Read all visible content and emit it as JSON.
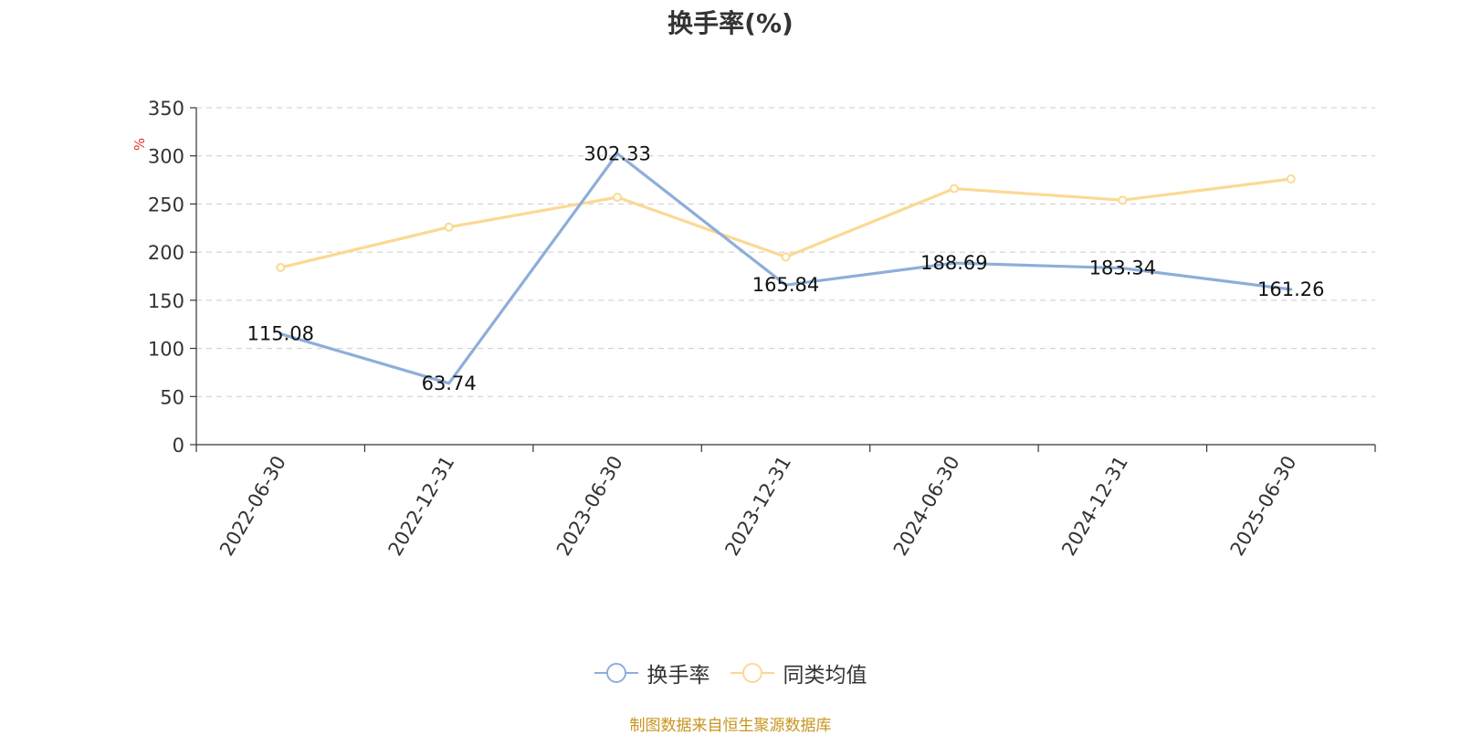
{
  "chart_data": {
    "type": "line",
    "title": "换手率(%)",
    "ylabel": "%",
    "categories": [
      "2022-06-30",
      "2022-12-31",
      "2023-06-30",
      "2023-12-31",
      "2024-06-30",
      "2024-12-31",
      "2025-06-30"
    ],
    "yticks": [
      "0",
      "50",
      "100",
      "150",
      "200",
      "250",
      "300",
      "350"
    ],
    "ylim": [
      0,
      350
    ],
    "grid": true,
    "legend_position": "bottom",
    "series": [
      {
        "name": "换手率",
        "color": "#8eaed9",
        "values": [
          115.08,
          63.74,
          302.33,
          165.84,
          188.69,
          183.34,
          161.26
        ],
        "labels": [
          "115.08",
          "63.74",
          "302.33",
          "165.84",
          "188.69",
          "183.34",
          "161.26"
        ]
      },
      {
        "name": "同类均值",
        "color": "#fbd994",
        "values": [
          184,
          226,
          257,
          195,
          266,
          254,
          276
        ]
      }
    ],
    "source": "制图数据来自恒生聚源数据库"
  }
}
